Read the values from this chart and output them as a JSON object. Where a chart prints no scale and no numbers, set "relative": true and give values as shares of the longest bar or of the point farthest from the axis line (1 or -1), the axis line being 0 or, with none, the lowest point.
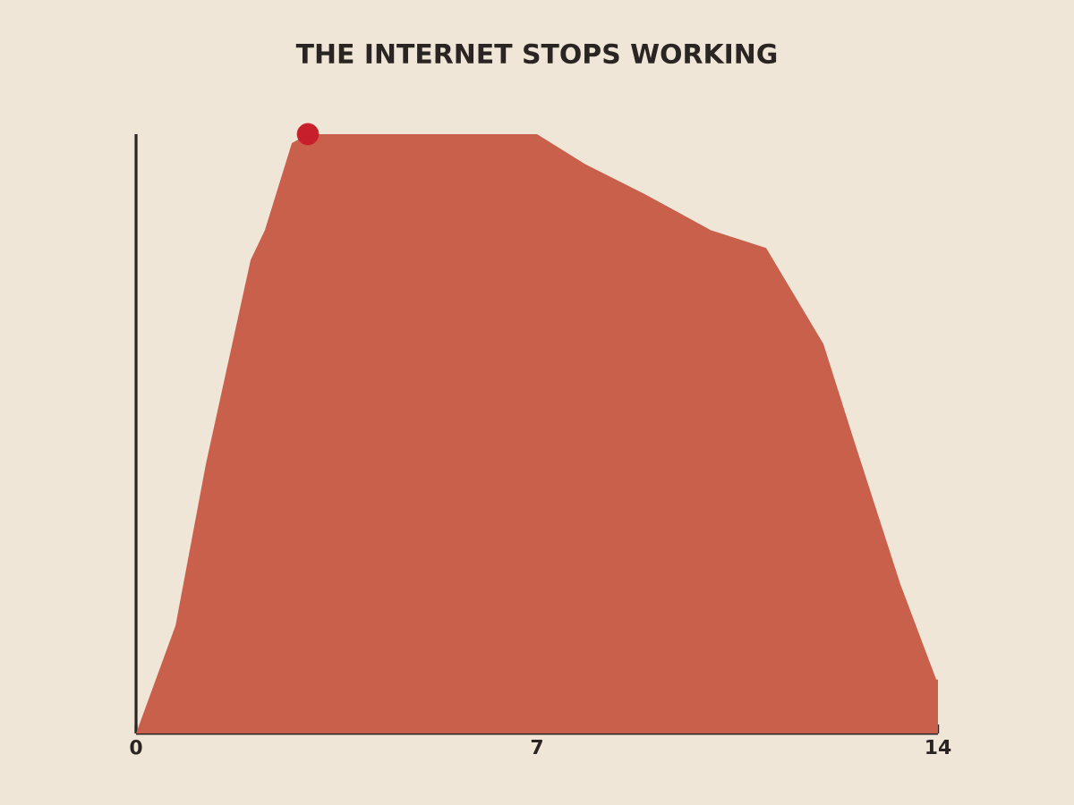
{
  "chart_data": {
    "type": "area",
    "title": "THE INTERNET STOPS WORKING",
    "relative": true,
    "xlim": [
      0,
      14
    ],
    "xticks": [
      0,
      7,
      14
    ],
    "series": [
      {
        "color": "#c9604c",
        "x": [
          0,
          0.69,
          1.22,
          2.0,
          2.25,
          2.72,
          3.0,
          7.0,
          7.84,
          8.88,
          10.03,
          11.0,
          12.0,
          12.53,
          13.34,
          13.97,
          14.0
        ],
        "values": [
          0,
          0.18,
          0.45,
          0.79,
          0.84,
          0.985,
          1,
          1,
          0.95,
          0.9,
          0.84,
          0.81,
          0.65,
          0.49,
          0.25,
          0.09,
          0.09
        ]
      },
      {
        "type": "scatter",
        "color": "#c8202a",
        "marker": "circle",
        "x": [
          3.0
        ],
        "values": [
          1
        ]
      }
    ],
    "grid": false
  }
}
